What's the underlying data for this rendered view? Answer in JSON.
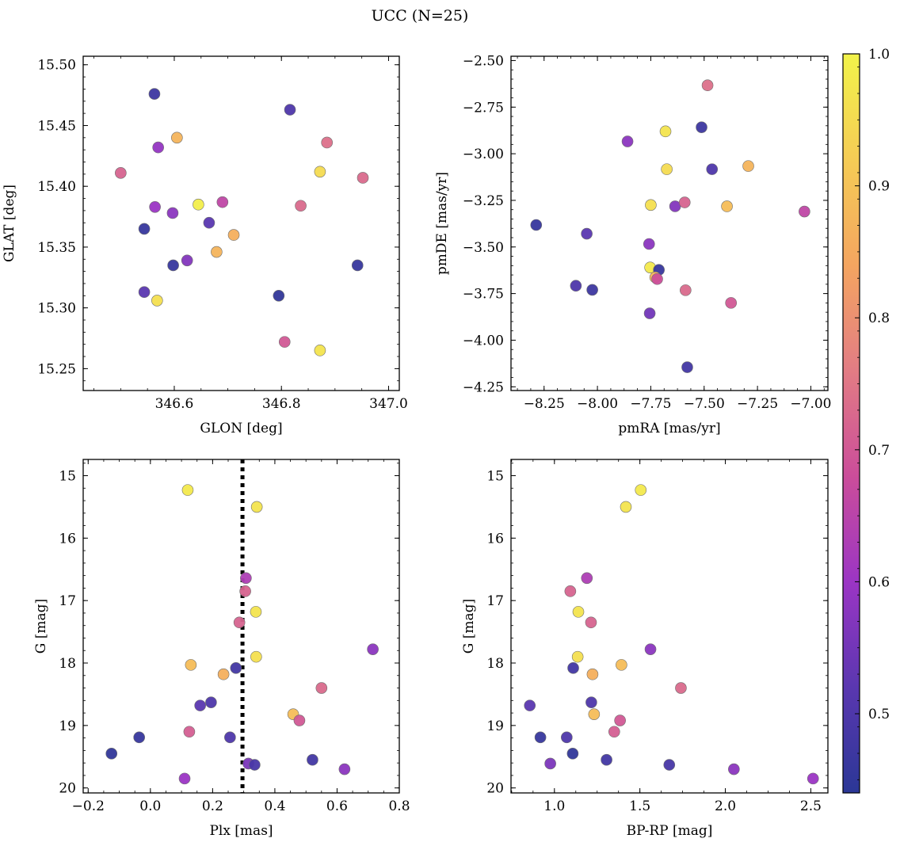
{
  "figure": {
    "title": "UCC (N=25)"
  },
  "colorbar": {
    "min": 0.44,
    "max": 1.0,
    "ticks": [
      0.5,
      0.6,
      0.7,
      0.8,
      0.9,
      1.0
    ],
    "tick_labels": [
      "0.5",
      "0.6",
      "0.7",
      "0.8",
      "0.9",
      "1.0"
    ],
    "colormap": "plasma",
    "stops": [
      "#2b3796",
      "#5a37b0",
      "#9b35c4",
      "#cb4d9a",
      "#e27c84",
      "#f4a560",
      "#f5cc55",
      "#f2f34a"
    ]
  },
  "chart_data": [
    {
      "type": "scatter",
      "title": "",
      "xlabel": "GLON [deg]",
      "ylabel": "GLAT [deg]",
      "xlim": [
        346.43,
        347.02
      ],
      "ylim": [
        15.232,
        15.507
      ],
      "xticks": [
        346.6,
        346.8,
        347.0
      ],
      "xtick_labels": [
        "346.6",
        "346.8",
        "347.0"
      ],
      "yticks": [
        15.25,
        15.3,
        15.35,
        15.4,
        15.45,
        15.5
      ],
      "ytick_labels": [
        "15.25",
        "15.30",
        "15.35",
        "15.40",
        "15.45",
        "15.50"
      ],
      "y_inverted": false,
      "grid": false,
      "points": [
        {
          "x": 346.563,
          "y": 15.476,
          "c": 0.47
        },
        {
          "x": 346.816,
          "y": 15.463,
          "c": 0.5
        },
        {
          "x": 346.605,
          "y": 15.44,
          "c": 0.87
        },
        {
          "x": 346.57,
          "y": 15.432,
          "c": 0.59
        },
        {
          "x": 346.885,
          "y": 15.436,
          "c": 0.74
        },
        {
          "x": 346.5,
          "y": 15.411,
          "c": 0.72
        },
        {
          "x": 346.872,
          "y": 15.412,
          "c": 0.95
        },
        {
          "x": 346.952,
          "y": 15.407,
          "c": 0.73
        },
        {
          "x": 346.645,
          "y": 15.385,
          "c": 0.99
        },
        {
          "x": 346.69,
          "y": 15.387,
          "c": 0.66
        },
        {
          "x": 346.564,
          "y": 15.383,
          "c": 0.6
        },
        {
          "x": 346.597,
          "y": 15.378,
          "c": 0.58
        },
        {
          "x": 346.836,
          "y": 15.384,
          "c": 0.73
        },
        {
          "x": 346.665,
          "y": 15.37,
          "c": 0.52
        },
        {
          "x": 346.544,
          "y": 15.365,
          "c": 0.46
        },
        {
          "x": 346.711,
          "y": 15.36,
          "c": 0.86
        },
        {
          "x": 346.679,
          "y": 15.346,
          "c": 0.87
        },
        {
          "x": 346.624,
          "y": 15.339,
          "c": 0.57
        },
        {
          "x": 346.598,
          "y": 15.335,
          "c": 0.46
        },
        {
          "x": 346.942,
          "y": 15.335,
          "c": 0.46
        },
        {
          "x": 346.544,
          "y": 15.313,
          "c": 0.52
        },
        {
          "x": 346.795,
          "y": 15.31,
          "c": 0.45
        },
        {
          "x": 346.568,
          "y": 15.306,
          "c": 0.96
        },
        {
          "x": 346.806,
          "y": 15.272,
          "c": 0.7
        },
        {
          "x": 346.872,
          "y": 15.265,
          "c": 0.97
        }
      ]
    },
    {
      "type": "scatter",
      "title": "",
      "xlabel": "pmRA [mas/yr]",
      "ylabel": "pmDE [mas/yr]",
      "xlim": [
        -8.405,
        -6.92
      ],
      "ylim": [
        -4.27,
        -2.477
      ],
      "xticks": [
        -8.25,
        -8.0,
        -7.75,
        -7.5,
        -7.25,
        -7.0
      ],
      "xtick_labels": [
        "−8.25",
        "−8.00",
        "−7.75",
        "−7.50",
        "−7.25",
        "−7.00"
      ],
      "yticks": [
        -4.25,
        -4.0,
        -3.75,
        -3.5,
        -3.25,
        -3.0,
        -2.75,
        -2.5
      ],
      "ytick_labels": [
        "−4.25",
        "−4.00",
        "−3.75",
        "−3.50",
        "−3.25",
        "−3.00",
        "−2.75",
        "−2.50"
      ],
      "y_inverted": false,
      "grid": false,
      "points": [
        {
          "x": -7.484,
          "y": -2.633,
          "c": 0.74
        },
        {
          "x": -7.681,
          "y": -2.88,
          "c": 0.97
        },
        {
          "x": -7.512,
          "y": -2.858,
          "c": 0.47
        },
        {
          "x": -7.859,
          "y": -2.934,
          "c": 0.58
        },
        {
          "x": -7.675,
          "y": -3.083,
          "c": 0.95
        },
        {
          "x": -7.463,
          "y": -3.083,
          "c": 0.5
        },
        {
          "x": -7.293,
          "y": -3.066,
          "c": 0.87
        },
        {
          "x": -7.75,
          "y": -3.275,
          "c": 0.96
        },
        {
          "x": -7.636,
          "y": -3.282,
          "c": 0.57
        },
        {
          "x": -7.591,
          "y": -3.261,
          "c": 0.72
        },
        {
          "x": -7.393,
          "y": -3.282,
          "c": 0.89
        },
        {
          "x": -7.03,
          "y": -3.31,
          "c": 0.66
        },
        {
          "x": -8.287,
          "y": -3.382,
          "c": 0.46
        },
        {
          "x": -8.05,
          "y": -3.429,
          "c": 0.52
        },
        {
          "x": -7.758,
          "y": -3.484,
          "c": 0.58
        },
        {
          "x": -7.753,
          "y": -3.61,
          "c": 0.98
        },
        {
          "x": -7.712,
          "y": -3.623,
          "c": 0.46
        },
        {
          "x": -7.729,
          "y": -3.663,
          "c": 0.87
        },
        {
          "x": -7.72,
          "y": -3.672,
          "c": 0.68
        },
        {
          "x": -8.101,
          "y": -3.708,
          "c": 0.5
        },
        {
          "x": -8.024,
          "y": -3.73,
          "c": 0.47
        },
        {
          "x": -7.587,
          "y": -3.732,
          "c": 0.73
        },
        {
          "x": -7.755,
          "y": -3.856,
          "c": 0.55
        },
        {
          "x": -7.374,
          "y": -3.8,
          "c": 0.7
        },
        {
          "x": -7.579,
          "y": -4.145,
          "c": 0.48
        }
      ]
    },
    {
      "type": "scatter",
      "title": "",
      "xlabel": "Plx [mas]",
      "ylabel": "G [mag]",
      "xlim": [
        -0.216,
        0.8
      ],
      "ylim": [
        14.74,
        20.08
      ],
      "xticks": [
        -0.2,
        0.0,
        0.2,
        0.4,
        0.6,
        0.8
      ],
      "xtick_labels": [
        "−0.2",
        "0.0",
        "0.2",
        "0.4",
        "0.6",
        "0.8"
      ],
      "yticks": [
        15,
        16,
        17,
        18,
        19,
        20
      ],
      "ytick_labels": [
        "15",
        "16",
        "17",
        "18",
        "19",
        "20"
      ],
      "y_inverted": true,
      "grid": false,
      "vline": {
        "x": 0.296,
        "style": "dotted"
      },
      "points": [
        {
          "x": 0.12,
          "y": 15.23,
          "c": 0.98
        },
        {
          "x": 0.342,
          "y": 15.5,
          "c": 0.97
        },
        {
          "x": 0.307,
          "y": 16.64,
          "c": 0.63
        },
        {
          "x": 0.305,
          "y": 16.85,
          "c": 0.72
        },
        {
          "x": 0.339,
          "y": 17.18,
          "c": 0.97
        },
        {
          "x": 0.286,
          "y": 17.35,
          "c": 0.72
        },
        {
          "x": 0.715,
          "y": 17.78,
          "c": 0.58
        },
        {
          "x": 0.34,
          "y": 17.9,
          "c": 0.96
        },
        {
          "x": 0.13,
          "y": 18.03,
          "c": 0.89
        },
        {
          "x": 0.275,
          "y": 18.08,
          "c": 0.48
        },
        {
          "x": 0.235,
          "y": 18.18,
          "c": 0.86
        },
        {
          "x": 0.55,
          "y": 18.4,
          "c": 0.73
        },
        {
          "x": 0.195,
          "y": 18.63,
          "c": 0.5
        },
        {
          "x": 0.16,
          "y": 18.68,
          "c": 0.52
        },
        {
          "x": 0.459,
          "y": 18.82,
          "c": 0.89
        },
        {
          "x": 0.479,
          "y": 18.92,
          "c": 0.7
        },
        {
          "x": 0.125,
          "y": 19.1,
          "c": 0.71
        },
        {
          "x": 0.256,
          "y": 19.19,
          "c": 0.5
        },
        {
          "x": -0.036,
          "y": 19.19,
          "c": 0.46
        },
        {
          "x": -0.125,
          "y": 19.45,
          "c": 0.45
        },
        {
          "x": 0.521,
          "y": 19.55,
          "c": 0.48
        },
        {
          "x": 0.315,
          "y": 19.61,
          "c": 0.56
        },
        {
          "x": 0.335,
          "y": 19.63,
          "c": 0.49
        },
        {
          "x": 0.624,
          "y": 19.7,
          "c": 0.58
        },
        {
          "x": 0.11,
          "y": 19.85,
          "c": 0.6
        }
      ]
    },
    {
      "type": "scatter",
      "title": "",
      "xlabel": "BP-RP [mag]",
      "ylabel": "G [mag]",
      "xlim": [
        0.746,
        2.6
      ],
      "ylim": [
        14.74,
        20.08
      ],
      "xticks": [
        1.0,
        1.5,
        2.0,
        2.5
      ],
      "xtick_labels": [
        "1.0",
        "1.5",
        "2.0",
        "2.5"
      ],
      "yticks": [
        15,
        16,
        17,
        18,
        19,
        20
      ],
      "ytick_labels": [
        "15",
        "16",
        "17",
        "18",
        "19",
        "20"
      ],
      "y_inverted": true,
      "grid": false,
      "points": [
        {
          "x": 1.505,
          "y": 15.23,
          "c": 0.98
        },
        {
          "x": 1.418,
          "y": 15.5,
          "c": 0.97
        },
        {
          "x": 1.19,
          "y": 16.64,
          "c": 0.63
        },
        {
          "x": 1.093,
          "y": 16.85,
          "c": 0.72
        },
        {
          "x": 1.14,
          "y": 17.18,
          "c": 0.97
        },
        {
          "x": 1.214,
          "y": 17.35,
          "c": 0.72
        },
        {
          "x": 1.562,
          "y": 17.78,
          "c": 0.58
        },
        {
          "x": 1.136,
          "y": 17.9,
          "c": 0.96
        },
        {
          "x": 1.392,
          "y": 18.03,
          "c": 0.89
        },
        {
          "x": 1.11,
          "y": 18.08,
          "c": 0.48
        },
        {
          "x": 1.223,
          "y": 18.18,
          "c": 0.86
        },
        {
          "x": 1.74,
          "y": 18.4,
          "c": 0.73
        },
        {
          "x": 1.216,
          "y": 18.63,
          "c": 0.5
        },
        {
          "x": 0.856,
          "y": 18.68,
          "c": 0.52
        },
        {
          "x": 1.232,
          "y": 18.82,
          "c": 0.89
        },
        {
          "x": 1.384,
          "y": 18.92,
          "c": 0.7
        },
        {
          "x": 1.35,
          "y": 19.1,
          "c": 0.71
        },
        {
          "x": 1.072,
          "y": 19.19,
          "c": 0.5
        },
        {
          "x": 0.918,
          "y": 19.19,
          "c": 0.46
        },
        {
          "x": 1.107,
          "y": 19.45,
          "c": 0.45
        },
        {
          "x": 1.305,
          "y": 19.55,
          "c": 0.48
        },
        {
          "x": 0.976,
          "y": 19.61,
          "c": 0.56
        },
        {
          "x": 1.672,
          "y": 19.63,
          "c": 0.49
        },
        {
          "x": 2.05,
          "y": 19.7,
          "c": 0.58
        },
        {
          "x": 2.513,
          "y": 19.85,
          "c": 0.6
        }
      ]
    }
  ]
}
